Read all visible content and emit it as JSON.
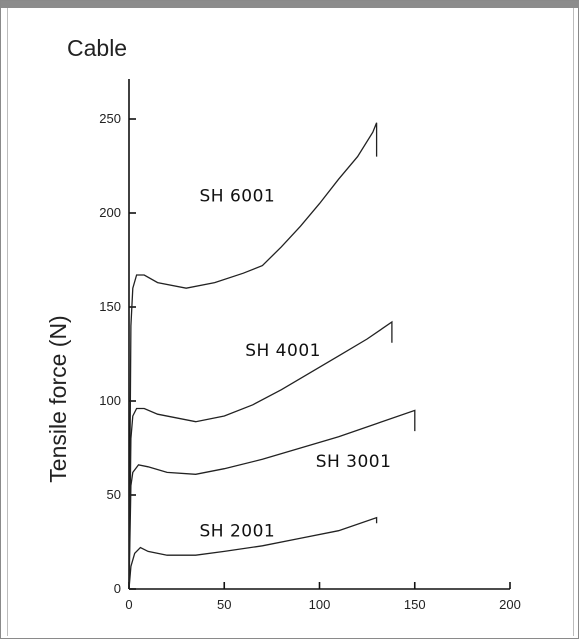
{
  "chart_data": {
    "type": "line",
    "title": "Cable",
    "xlabel": "",
    "ylabel": "Tensile force (N)",
    "xlim": [
      0,
      200
    ],
    "ylim": [
      0,
      250
    ],
    "x_ticks": [
      0,
      50,
      100,
      150,
      200
    ],
    "y_ticks": [
      0,
      50,
      100,
      150,
      200,
      250
    ],
    "grid": false,
    "legend": "none",
    "series": [
      {
        "name": "SH 6001",
        "points": [
          [
            0,
            0
          ],
          [
            1,
            140
          ],
          [
            2,
            160
          ],
          [
            4,
            167
          ],
          [
            8,
            167
          ],
          [
            15,
            163
          ],
          [
            30,
            160
          ],
          [
            45,
            163
          ],
          [
            60,
            168
          ],
          [
            70,
            172
          ],
          [
            80,
            182
          ],
          [
            90,
            193
          ],
          [
            100,
            205
          ],
          [
            110,
            218
          ],
          [
            120,
            230
          ],
          [
            128,
            243
          ],
          [
            130,
            248
          ],
          [
            130,
            230
          ]
        ]
      },
      {
        "name": "SH 4001",
        "points": [
          [
            0,
            0
          ],
          [
            1,
            80
          ],
          [
            2,
            92
          ],
          [
            4,
            96
          ],
          [
            8,
            96
          ],
          [
            15,
            93
          ],
          [
            35,
            89
          ],
          [
            50,
            92
          ],
          [
            65,
            98
          ],
          [
            80,
            106
          ],
          [
            95,
            115
          ],
          [
            110,
            124
          ],
          [
            125,
            133
          ],
          [
            138,
            142
          ],
          [
            138,
            131
          ]
        ]
      },
      {
        "name": "SH 3001",
        "points": [
          [
            0,
            0
          ],
          [
            1,
            55
          ],
          [
            2,
            62
          ],
          [
            5,
            66
          ],
          [
            10,
            65
          ],
          [
            20,
            62
          ],
          [
            35,
            61
          ],
          [
            50,
            64
          ],
          [
            70,
            69
          ],
          [
            90,
            75
          ],
          [
            110,
            81
          ],
          [
            130,
            88
          ],
          [
            150,
            95
          ],
          [
            150,
            84
          ]
        ]
      },
      {
        "name": "SH 2001",
        "points": [
          [
            0,
            0
          ],
          [
            1,
            12
          ],
          [
            3,
            19
          ],
          [
            6,
            22
          ],
          [
            10,
            20
          ],
          [
            20,
            18
          ],
          [
            35,
            18
          ],
          [
            50,
            20
          ],
          [
            70,
            23
          ],
          [
            90,
            27
          ],
          [
            110,
            31
          ],
          [
            130,
            38
          ],
          [
            130,
            35
          ]
        ]
      }
    ]
  }
}
